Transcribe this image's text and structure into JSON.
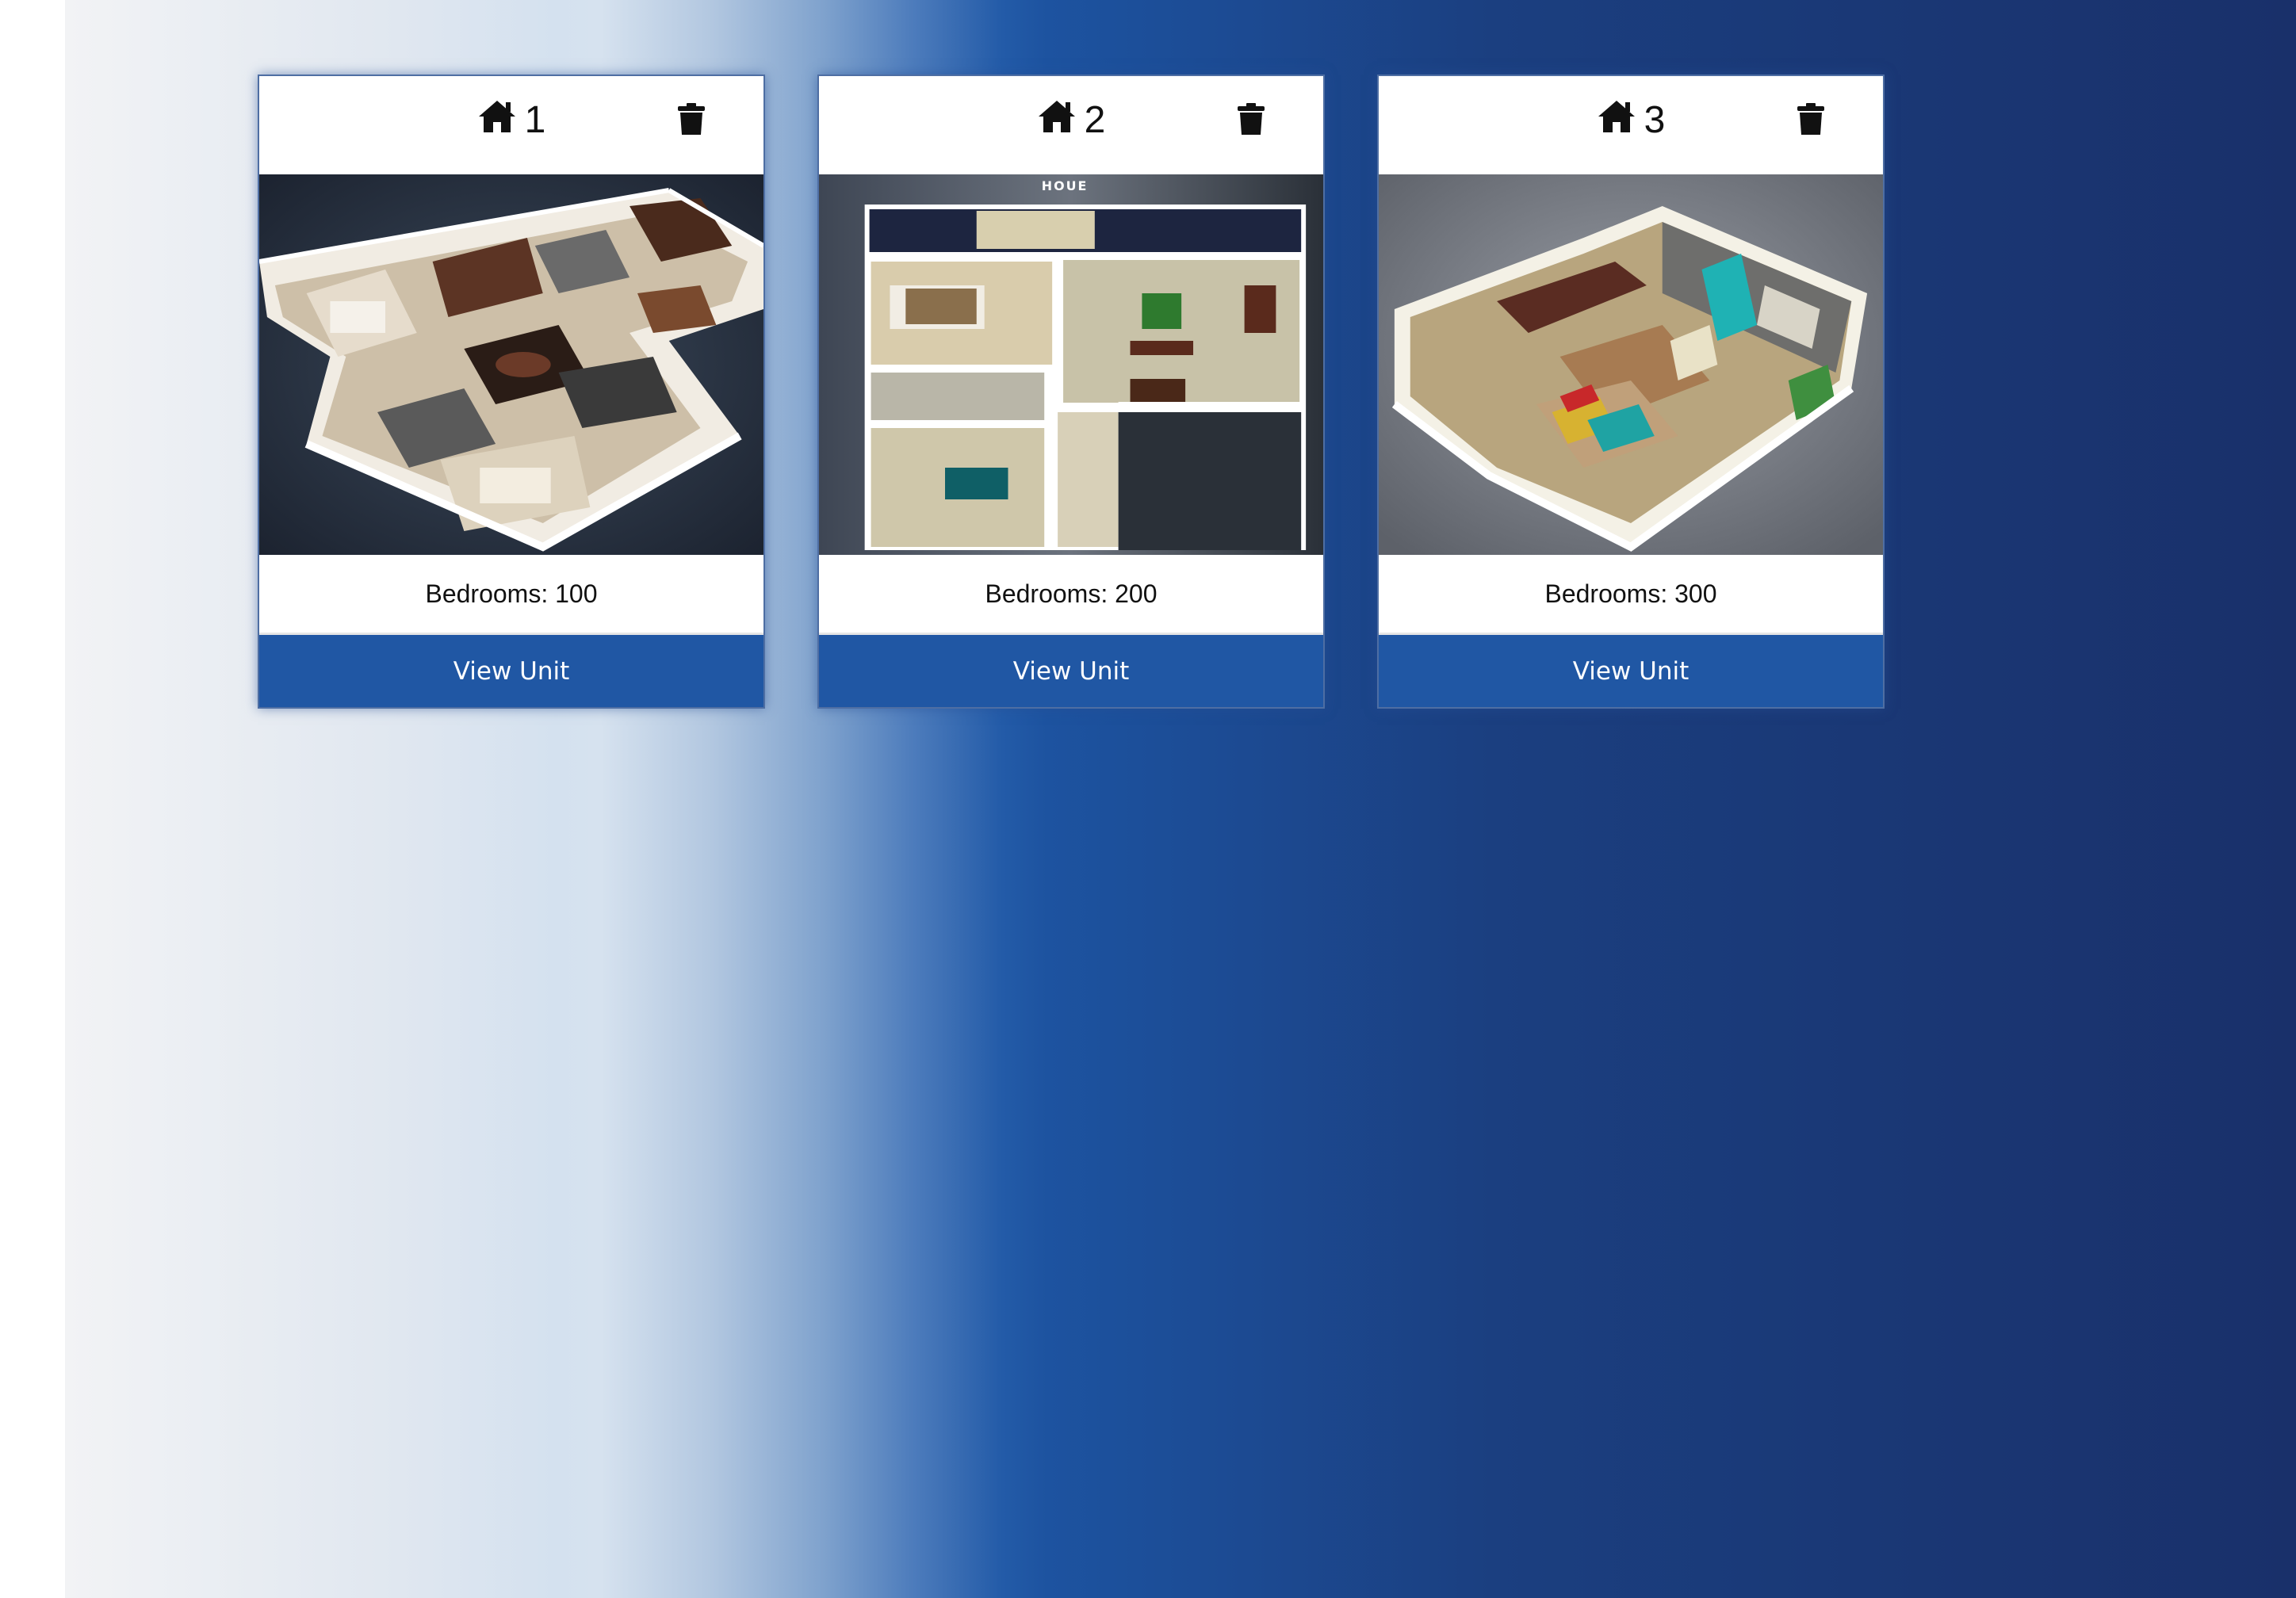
{
  "units": [
    {
      "number": "1",
      "bedrooms_text": "Bedrooms: 100",
      "button_label": "View Unit",
      "icon": "home-icon",
      "delete_icon": "trash-icon",
      "image": "isometric-floor-plan-dark"
    },
    {
      "number": "2",
      "bedrooms_text": "Bedrooms: 200",
      "button_label": "View Unit",
      "icon": "home-icon",
      "delete_icon": "trash-icon",
      "image": "top-down-floor-plan",
      "image_label": "HOUE"
    },
    {
      "number": "3",
      "bedrooms_text": "Bedrooms: 300",
      "button_label": "View Unit",
      "icon": "home-icon",
      "delete_icon": "trash-icon",
      "image": "isometric-floor-plan-gray"
    }
  ],
  "colors": {
    "button": "#2057a4",
    "gradient_light": "#f2f3f5",
    "gradient_dark": "#19306a"
  }
}
